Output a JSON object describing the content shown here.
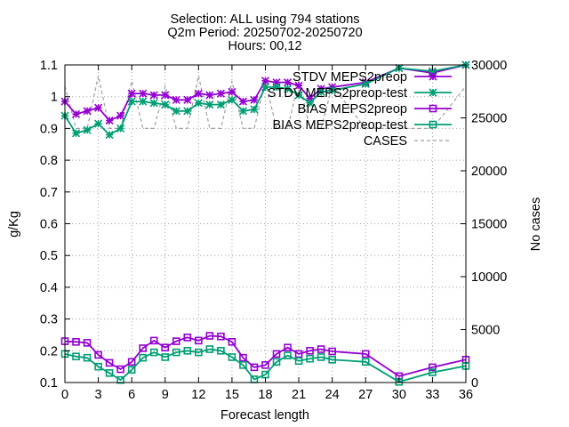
{
  "chart_data": {
    "type": "line",
    "title_lines": [
      "Selection: ALL using   794 stations",
      "Q2m   Period: 20250702-20250720",
      "Hours: 00,12"
    ],
    "xlabel": "Forecast length",
    "ylabel": "g/Kg",
    "y2label": "No cases",
    "xlim": [
      0,
      36
    ],
    "ylim": [
      0.1,
      1.1
    ],
    "y2lim": [
      0,
      30000
    ],
    "xticks": [
      "0",
      "3",
      "6",
      "9",
      "12",
      "15",
      "18",
      "21",
      "24",
      "27",
      "30",
      "33",
      "36"
    ],
    "yticks": [
      "0.1",
      "0.2",
      "0.3",
      "0.4",
      "0.5",
      "0.6",
      "0.7",
      "0.8",
      "0.9",
      "1",
      "1.1"
    ],
    "y2ticks": [
      "0",
      "5000",
      "10000",
      "15000",
      "20000",
      "25000",
      "30000"
    ],
    "grid": true,
    "legend_position": "top-right",
    "series": [
      {
        "name": "STDV MEPS2preop",
        "color": "#9400d3",
        "marker": "star",
        "axis": "y1",
        "x": [
          0,
          1,
          2,
          3,
          4,
          5,
          6,
          7,
          8,
          9,
          10,
          11,
          12,
          13,
          14,
          15,
          16,
          17,
          18,
          19,
          20,
          21,
          22,
          23,
          24,
          27,
          30,
          33,
          36
        ],
        "y": [
          0.985,
          0.945,
          0.955,
          0.965,
          0.925,
          0.94,
          1.01,
          1.01,
          1.005,
          1.005,
          0.99,
          0.99,
          1.01,
          1.005,
          1.01,
          1.015,
          0.985,
          0.99,
          1.05,
          1.045,
          1.045,
          1.035,
          0.995,
          1.025,
          1.03,
          1.045,
          1.09,
          1.075,
          1.1
        ]
      },
      {
        "name": "STDV MEPS2preop-test",
        "color": "#009e73",
        "marker": "star",
        "axis": "y1",
        "x": [
          0,
          1,
          2,
          3,
          4,
          5,
          6,
          7,
          8,
          9,
          10,
          11,
          12,
          13,
          14,
          15,
          16,
          17,
          18,
          19,
          20,
          21,
          22,
          23,
          24,
          27,
          30,
          33,
          36
        ],
        "y": [
          0.94,
          0.885,
          0.895,
          0.915,
          0.88,
          0.9,
          0.985,
          0.985,
          0.98,
          0.975,
          0.955,
          0.955,
          0.98,
          0.975,
          0.975,
          0.99,
          0.955,
          0.96,
          1.03,
          1.03,
          1.025,
          1.005,
          0.98,
          1.015,
          1.02,
          1.04,
          1.09,
          1.08,
          1.1
        ]
      },
      {
        "name": "BIAS MEPS2preop",
        "color": "#9400d3",
        "marker": "square",
        "axis": "y1",
        "x": [
          0,
          1,
          2,
          3,
          4,
          5,
          6,
          7,
          8,
          9,
          10,
          11,
          12,
          13,
          14,
          15,
          16,
          17,
          18,
          19,
          20,
          21,
          22,
          23,
          24,
          27,
          30,
          33,
          36
        ],
        "y": [
          0.23,
          0.228,
          0.225,
          0.187,
          0.162,
          0.142,
          0.165,
          0.208,
          0.232,
          0.21,
          0.23,
          0.242,
          0.232,
          0.247,
          0.245,
          0.228,
          0.178,
          0.148,
          0.155,
          0.19,
          0.21,
          0.19,
          0.2,
          0.205,
          0.198,
          0.19,
          0.12,
          0.148,
          0.172
        ]
      },
      {
        "name": "BIAS MEPS2preop-test",
        "color": "#009e73",
        "marker": "square",
        "axis": "y1",
        "x": [
          0,
          1,
          2,
          3,
          4,
          5,
          6,
          7,
          8,
          9,
          10,
          11,
          12,
          13,
          14,
          15,
          16,
          17,
          18,
          19,
          20,
          21,
          22,
          23,
          24,
          27,
          30,
          33,
          36
        ],
        "y": [
          0.19,
          0.182,
          0.178,
          0.15,
          0.13,
          0.108,
          0.14,
          0.178,
          0.195,
          0.18,
          0.195,
          0.2,
          0.195,
          0.205,
          0.2,
          0.18,
          0.155,
          0.11,
          0.125,
          0.165,
          0.185,
          0.168,
          0.175,
          0.18,
          0.172,
          0.165,
          0.102,
          0.132,
          0.152
        ]
      },
      {
        "name": "CASES",
        "color": "#a0a0a0",
        "marker": "none",
        "dashed": true,
        "axis": "y2",
        "x": [
          0,
          1,
          2,
          3,
          4,
          5,
          6,
          7,
          8,
          9,
          10,
          11,
          12,
          13,
          14,
          15,
          16,
          17,
          18,
          19,
          20,
          21,
          22,
          23,
          24,
          27,
          30,
          33,
          36
        ],
        "y": [
          28000,
          24000,
          24000,
          29000,
          24000,
          24000,
          28500,
          24000,
          24000,
          28000,
          24000,
          24000,
          29000,
          24000,
          24000,
          28500,
          24000,
          24000,
          28500,
          24000,
          24000,
          28500,
          24000,
          24000,
          28000,
          24000,
          24000,
          24000,
          28000
        ]
      }
    ]
  }
}
